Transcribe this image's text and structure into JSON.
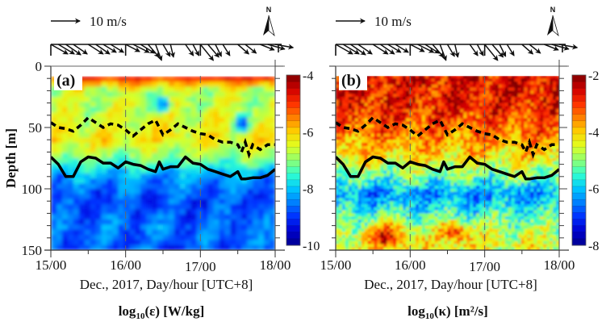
{
  "figure": {
    "scale_arrow_label": "10 m/s",
    "north_label": "N",
    "xlabel": "Dec., 2017, Day/hour [UTC+8]",
    "ylabel": "Depth [m]"
  },
  "colormap": [
    "#00008f",
    "#0000d0",
    "#0030ff",
    "#0080ff",
    "#00c8ff",
    "#30ffd0",
    "#90ff70",
    "#e0ff20",
    "#ffd000",
    "#ff8000",
    "#ff3000",
    "#d00000",
    "#800000"
  ],
  "chart_data": [
    {
      "type": "heatmap",
      "panel_label": "(a)",
      "title": "",
      "xlabel": "Dec., 2017, Day/hour [UTC+8]",
      "ylabel": "Depth [m]",
      "x_ticks": [
        "15/00",
        "16/00",
        "17/00",
        "18/00"
      ],
      "x_range_days": [
        15,
        18
      ],
      "y_ticks": [
        0,
        50,
        100,
        150
      ],
      "ylim": [
        0,
        150
      ],
      "y_inverted": true,
      "vertical_gridlines_at_days": [
        16,
        17
      ],
      "colorbar": {
        "ticks": [
          -4,
          -6,
          -8,
          -10
        ],
        "range": [
          -10,
          -4
        ],
        "title_main": "log",
        "title_sub": "10",
        "title_rest": "(ε) [W/kg]"
      },
      "field_description": "Near-surface (10-15 m) orange/red patches; 15-75 m mostly cyan-green-yellow (~-6.5); below ~80 m predominantly blue (~-8.5 to -9.5)",
      "field_profile": [
        {
          "depth": 10,
          "value": -5.0
        },
        {
          "depth": 20,
          "value": -6.8
        },
        {
          "depth": 40,
          "value": -6.6
        },
        {
          "depth": 60,
          "value": -6.3
        },
        {
          "depth": 75,
          "value": -7.0
        },
        {
          "depth": 90,
          "value": -8.3
        },
        {
          "depth": 110,
          "value": -8.9
        },
        {
          "depth": 130,
          "value": -8.6
        },
        {
          "depth": 150,
          "value": -8.8
        }
      ]
    },
    {
      "type": "heatmap",
      "panel_label": "(b)",
      "title": "",
      "xlabel": "Dec., 2017, Day/hour [UTC+8]",
      "ylabel": "",
      "x_ticks": [
        "15/00",
        "16/00",
        "17/00",
        "18/00"
      ],
      "x_range_days": [
        15,
        18
      ],
      "y_ticks": [
        0,
        50,
        100,
        150
      ],
      "ylim": [
        0,
        150
      ],
      "y_inverted": true,
      "vertical_gridlines_at_days": [
        16,
        17
      ],
      "colorbar": {
        "ticks": [
          -2,
          -4,
          -6,
          -8
        ],
        "range": [
          -8,
          -2
        ],
        "title_main": "log",
        "title_sub": "10",
        "title_rest": "(κ) [m²/s]"
      },
      "field_description": "Upper 60 m dark red/orange (~-2.5 to -3.5); 60-90 m orange/yellow; 90-115 m blue band (~-6.5); deeper mixed cyan with orange patches",
      "field_profile": [
        {
          "depth": 10,
          "value": -2.6
        },
        {
          "depth": 30,
          "value": -2.8
        },
        {
          "depth": 55,
          "value": -3.4
        },
        {
          "depth": 75,
          "value": -4.2
        },
        {
          "depth": 90,
          "value": -5.2
        },
        {
          "depth": 105,
          "value": -6.4
        },
        {
          "depth": 125,
          "value": -5.2
        },
        {
          "depth": 145,
          "value": -4.4
        }
      ]
    }
  ],
  "lines": {
    "dashed_depth_m": {
      "description": "dashed black line (mixed layer depth)",
      "x_days": [
        15.0,
        15.1,
        15.2,
        15.3,
        15.4,
        15.5,
        15.6,
        15.7,
        15.8,
        15.9,
        16.0,
        16.1,
        16.2,
        16.3,
        16.4,
        16.45,
        16.5,
        16.6,
        16.7,
        16.8,
        16.9,
        17.0,
        17.1,
        17.2,
        17.3,
        17.4,
        17.5,
        17.55,
        17.6,
        17.65,
        17.7,
        17.8,
        17.9,
        18.0
      ],
      "depth": [
        46,
        50,
        51,
        53,
        48,
        42,
        46,
        50,
        47,
        48,
        52,
        57,
        52,
        47,
        44,
        50,
        56,
        52,
        47,
        50,
        53,
        55,
        56,
        60,
        62,
        62,
        64,
        70,
        62,
        72,
        64,
        68,
        64,
        64
      ]
    },
    "solid_depth_m": {
      "description": "solid black line (thermocline depth)",
      "x_days": [
        15.0,
        15.1,
        15.2,
        15.3,
        15.4,
        15.5,
        15.6,
        15.7,
        15.8,
        15.9,
        16.0,
        16.1,
        16.2,
        16.3,
        16.4,
        16.45,
        16.5,
        16.6,
        16.7,
        16.8,
        16.9,
        17.0,
        17.1,
        17.2,
        17.3,
        17.4,
        17.5,
        17.55,
        17.6,
        17.7,
        17.8,
        17.9,
        18.0
      ],
      "depth": [
        74,
        80,
        90,
        90,
        78,
        74,
        75,
        79,
        79,
        83,
        78,
        80,
        81,
        84,
        86,
        78,
        84,
        82,
        82,
        74,
        79,
        80,
        84,
        86,
        88,
        90,
        86,
        92,
        92,
        91,
        91,
        89,
        84
      ]
    }
  },
  "wind_vectors": {
    "description": "stick plot of wind vectors along top axis; all pointing south-east",
    "x_days": [
      15.0,
      15.1,
      15.2,
      15.3,
      15.5,
      15.6,
      15.7,
      15.8,
      16.0,
      16.1,
      16.2,
      16.3,
      16.4,
      16.5,
      16.6,
      16.8,
      16.9,
      17.0,
      17.1,
      17.2,
      17.3,
      17.5,
      17.6,
      17.8,
      17.9,
      18.0
    ],
    "u_ms": [
      8.5,
      8.0,
      7.5,
      7.0,
      7.5,
      7.0,
      6.5,
      6.5,
      7.0,
      8.0,
      7.0,
      5.5,
      3.0,
      3.5,
      1.5,
      4.0,
      3.0,
      6.5,
      5.5,
      3.0,
      3.5,
      5.5,
      5.5,
      7.0,
      8.5,
      9.0
    ],
    "v_ms": [
      -6.0,
      -6.0,
      -6.5,
      -6.0,
      -6.0,
      -6.0,
      -5.0,
      -5.0,
      -4.5,
      -5.0,
      -5.5,
      -8.0,
      -10.0,
      -7.5,
      -8.0,
      -7.0,
      -7.0,
      -10.0,
      -8.0,
      -7.5,
      -7.0,
      -6.0,
      -5.5,
      -3.5,
      -3.0,
      -2.0
    ]
  },
  "panels": [
    {
      "label": "(a)",
      "units_main": "log",
      "units_sub": "10",
      "units_rest": "(ε) [W/kg]"
    },
    {
      "label": "(b)",
      "units_main": "log",
      "units_sub": "10",
      "units_rest": "(κ) [m²/s]"
    }
  ]
}
